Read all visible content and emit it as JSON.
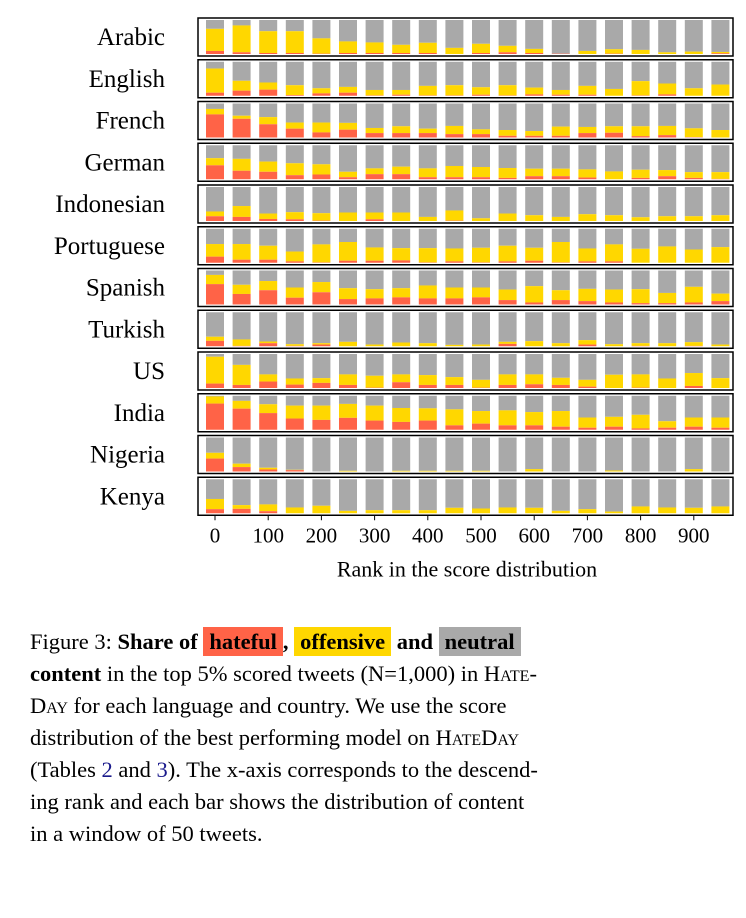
{
  "colors": {
    "hateful": "#FF6347",
    "offensive": "#FFD700",
    "neutral": "#A9A9A9"
  },
  "chart_data": {
    "type": "bar",
    "stacked": true,
    "xlabel": "Rank in the score distribution",
    "x_ticks": [
      "0",
      "100",
      "200",
      "300",
      "400",
      "500",
      "600",
      "700",
      "800",
      "900"
    ],
    "x": [
      0,
      50,
      100,
      150,
      200,
      250,
      300,
      350,
      400,
      450,
      500,
      550,
      600,
      650,
      700,
      750,
      800,
      850,
      900,
      950
    ],
    "ylim": [
      0,
      1
    ],
    "series_names": [
      "hateful",
      "offensive",
      "neutral"
    ],
    "panels": [
      {
        "name": "Arabic",
        "hateful": [
          0.09,
          0.05,
          0.03,
          0.03,
          0.01,
          0.03,
          0.03,
          0.03,
          0.03,
          0,
          0.03,
          0.05,
          0.03,
          0.01,
          0,
          0.01,
          0,
          0,
          0,
          0.02
        ],
        "offensive": [
          0.65,
          0.79,
          0.64,
          0.64,
          0.45,
          0.34,
          0.31,
          0.24,
          0.3,
          0.18,
          0.27,
          0.19,
          0.12,
          0,
          0.09,
          0.13,
          0.12,
          0.05,
          0.07,
          0.04
        ]
      },
      {
        "name": "English",
        "hateful": [
          0.09,
          0.15,
          0.18,
          0.02,
          0.07,
          0.09,
          0.01,
          0.03,
          0.01,
          0.01,
          0.03,
          0.01,
          0.04,
          0.03,
          0.03,
          0,
          0.01,
          0.04,
          0,
          0
        ],
        "offensive": [
          0.71,
          0.29,
          0.21,
          0.29,
          0.15,
          0.17,
          0.16,
          0.14,
          0.28,
          0.3,
          0.22,
          0.3,
          0.2,
          0.14,
          0.26,
          0.2,
          0.42,
          0.32,
          0.22,
          0.33
        ]
      },
      {
        "name": "French",
        "hateful": [
          0.68,
          0.55,
          0.39,
          0.26,
          0.15,
          0.23,
          0.13,
          0.13,
          0.13,
          0.1,
          0.1,
          0.05,
          0.05,
          0.05,
          0.13,
          0.14,
          0.04,
          0.07,
          0.01,
          0
        ],
        "offensive": [
          0.16,
          0.09,
          0.21,
          0.18,
          0.29,
          0.2,
          0.15,
          0.2,
          0.13,
          0.24,
          0.14,
          0.17,
          0.14,
          0.27,
          0.18,
          0.19,
          0.29,
          0.27,
          0.26,
          0.22
        ]
      },
      {
        "name": "German",
        "hateful": [
          0.41,
          0.25,
          0.22,
          0.12,
          0.14,
          0.06,
          0.15,
          0.15,
          0.06,
          0.06,
          0.06,
          0.04,
          0.09,
          0.09,
          0.05,
          0,
          0.04,
          0.09,
          0.04,
          0.01
        ],
        "offensive": [
          0.21,
          0.35,
          0.3,
          0.35,
          0.3,
          0.16,
          0.17,
          0.22,
          0.26,
          0.33,
          0.3,
          0.29,
          0.22,
          0.22,
          0.24,
          0.23,
          0.24,
          0.18,
          0.17,
          0.2
        ]
      },
      {
        "name": "Indonesian",
        "hateful": [
          0.14,
          0.12,
          0.06,
          0.05,
          0.01,
          0,
          0.05,
          0,
          0,
          0.01,
          0,
          0,
          0,
          0,
          0,
          0,
          0,
          0,
          0,
          0
        ],
        "offensive": [
          0.14,
          0.32,
          0.16,
          0.21,
          0.22,
          0.25,
          0.2,
          0.25,
          0.12,
          0.3,
          0.08,
          0.22,
          0.17,
          0.12,
          0.2,
          0.17,
          0.11,
          0.14,
          0.14,
          0.17
        ]
      },
      {
        "name": "Portuguese",
        "hateful": [
          0.18,
          0.09,
          0.09,
          0.04,
          0.01,
          0.06,
          0.06,
          0.07,
          0.01,
          0.04,
          0.01,
          0.04,
          0.06,
          0.01,
          0.04,
          0.04,
          0,
          0,
          0,
          0
        ],
        "offensive": [
          0.37,
          0.46,
          0.41,
          0.29,
          0.53,
          0.55,
          0.39,
          0.36,
          0.42,
          0.38,
          0.43,
          0.46,
          0.38,
          0.6,
          0.38,
          0.5,
          0.41,
          0.48,
          0.39,
          0.46
        ]
      },
      {
        "name": "Spanish",
        "hateful": [
          0.6,
          0.31,
          0.42,
          0.2,
          0.36,
          0.16,
          0.18,
          0.21,
          0.18,
          0.18,
          0.21,
          0.13,
          0.06,
          0.13,
          0.1,
          0.06,
          0.04,
          0.04,
          0.06,
          0.1
        ],
        "offensive": [
          0.27,
          0.27,
          0.27,
          0.3,
          0.3,
          0.32,
          0.27,
          0.27,
          0.38,
          0.32,
          0.29,
          0.31,
          0.48,
          0.29,
          0.36,
          0.38,
          0.41,
          0.3,
          0.46,
          0.22
        ]
      },
      {
        "name": "Turkish",
        "hateful": [
          0.16,
          0.01,
          0.09,
          0.01,
          0.05,
          0,
          0,
          0,
          0,
          0,
          0,
          0.07,
          0,
          0,
          0.05,
          0,
          0.01,
          0,
          0.01,
          0
        ],
        "offensive": [
          0.12,
          0.19,
          0.05,
          0.05,
          0.04,
          0.13,
          0.05,
          0.11,
          0.09,
          0.04,
          0.05,
          0.06,
          0.15,
          0.09,
          0.13,
          0.06,
          0.08,
          0.09,
          0.11,
          0.05
        ]
      },
      {
        "name": "US",
        "hateful": [
          0.13,
          0.09,
          0.19,
          0.1,
          0.15,
          0.09,
          0.01,
          0.17,
          0.09,
          0.09,
          0.01,
          0.09,
          0.11,
          0.09,
          0.04,
          0,
          0.01,
          0,
          0.06,
          0
        ],
        "offensive": [
          0.79,
          0.59,
          0.21,
          0.18,
          0.14,
          0.31,
          0.35,
          0.23,
          0.29,
          0.23,
          0.23,
          0.31,
          0.29,
          0.21,
          0.2,
          0.39,
          0.39,
          0.28,
          0.38,
          0.29
        ]
      },
      {
        "name": "India",
        "hateful": [
          0.77,
          0.62,
          0.49,
          0.33,
          0.29,
          0.35,
          0.27,
          0.23,
          0.27,
          0.13,
          0.18,
          0.13,
          0.13,
          0.09,
          0.06,
          0.09,
          0.04,
          0.06,
          0.09,
          0.06
        ],
        "offensive": [
          0.21,
          0.23,
          0.26,
          0.38,
          0.42,
          0.41,
          0.44,
          0.41,
          0.36,
          0.47,
          0.37,
          0.44,
          0.39,
          0.46,
          0.3,
          0.29,
          0.4,
          0.19,
          0.27,
          0.3
        ]
      },
      {
        "name": "Nigeria",
        "hateful": [
          0.38,
          0.13,
          0.06,
          0.04,
          0,
          0,
          0,
          0,
          0,
          0,
          0,
          0,
          0,
          0,
          0,
          0,
          0,
          0,
          0,
          0
        ],
        "offensive": [
          0.17,
          0.1,
          0.05,
          0.01,
          0,
          0.02,
          0,
          0.02,
          0.02,
          0.02,
          0.02,
          0,
          0.07,
          0,
          0,
          0.03,
          0,
          0,
          0.07,
          0
        ]
      },
      {
        "name": "Kenya",
        "hateful": [
          0.12,
          0.13,
          0.06,
          0,
          0,
          0,
          0,
          0,
          0,
          0,
          0,
          0,
          0,
          0,
          0,
          0,
          0,
          0,
          0,
          0
        ],
        "offensive": [
          0.3,
          0.11,
          0.2,
          0.17,
          0.22,
          0.07,
          0.09,
          0.09,
          0.09,
          0.16,
          0.14,
          0.17,
          0.16,
          0.07,
          0.12,
          0.05,
          0.2,
          0.17,
          0.16,
          0.2
        ]
      }
    ]
  },
  "caption": {
    "fig": "Figure 3: ",
    "share_of": "Share of",
    "hateful": "hateful",
    "comma": ",",
    "offensive": "offensive",
    "and": "and",
    "neutral": "neutral",
    "content": "content",
    "line2": " in the top 5% scored tweets (N=1,000) in ",
    "hate_a": "Hate-",
    "day_a": "Day",
    "line3": " for each language and country. We use the score",
    "line4": "distribution of the best performing model on ",
    "hateday": "HateDay",
    "line5a": "(Tables ",
    "ref2": "2",
    "line5b": " and ",
    "ref3": "3",
    "line5c": "). The x-axis corresponds to the descend-",
    "line6": "ing rank and each bar shows the distribution of content",
    "line7": "in a window of 50 tweets."
  }
}
